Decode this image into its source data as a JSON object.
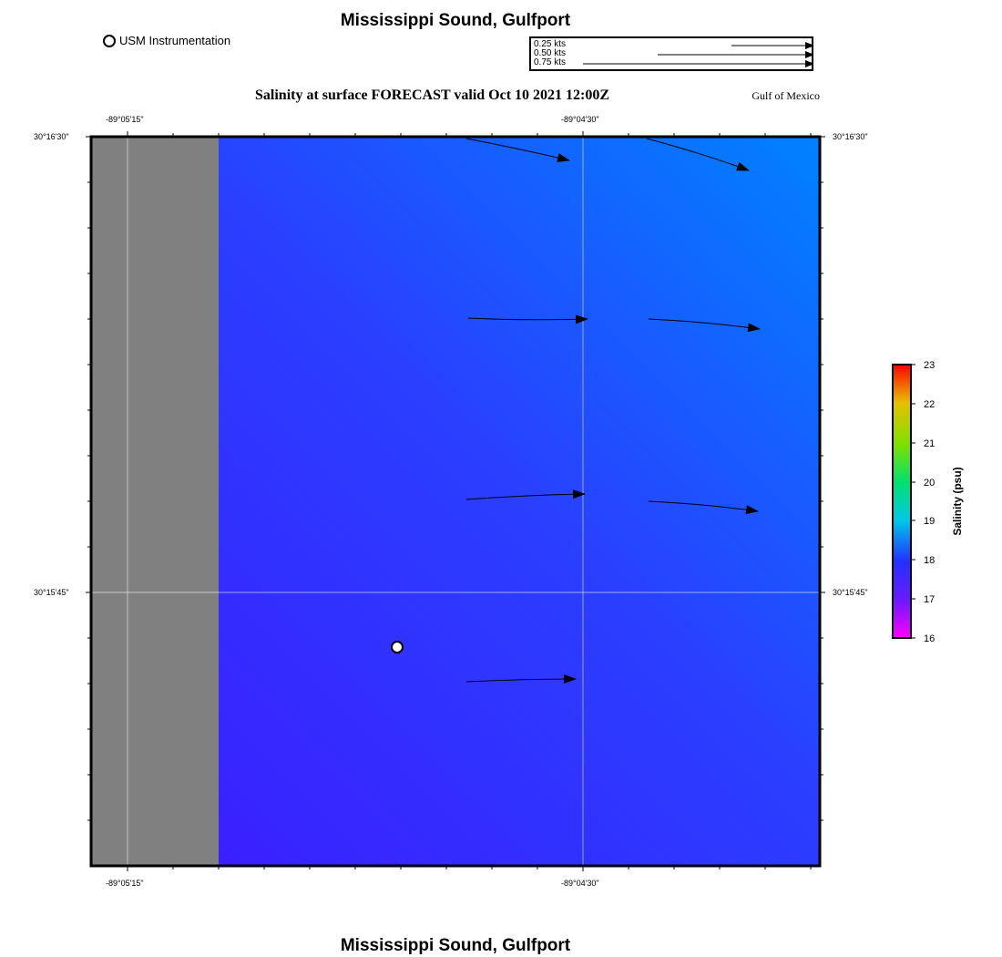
{
  "map": {
    "title_top": "Mississippi Sound, Gulfport",
    "title_bottom": "Mississippi Sound, Gulfport",
    "subtitle": "Salinity at surface FORECAST valid Oct 10 2021 12:00Z",
    "region_label": "Gulf of Mexico",
    "station_legend": "USM Instrumentation",
    "vector_scale": [
      "0.25 kts",
      "0.50 kts",
      "0.75 kts"
    ],
    "lon_ticks": [
      "-89°05'15\"",
      "-89°04'30\""
    ],
    "lat_ticks": [
      "30°16'30\"",
      "30°15'45\""
    ],
    "colors": {
      "land": "#808080",
      "water_low": "#3d1aff",
      "water_high": "#0080ff",
      "frame": "#000000",
      "grid": "#ffffff"
    }
  },
  "colorbar": {
    "label": "Salinity (psu)",
    "ticks": [
      "23",
      "22",
      "21",
      "20",
      "19",
      "18",
      "17",
      "16"
    ],
    "range": [
      16,
      23
    ]
  }
}
